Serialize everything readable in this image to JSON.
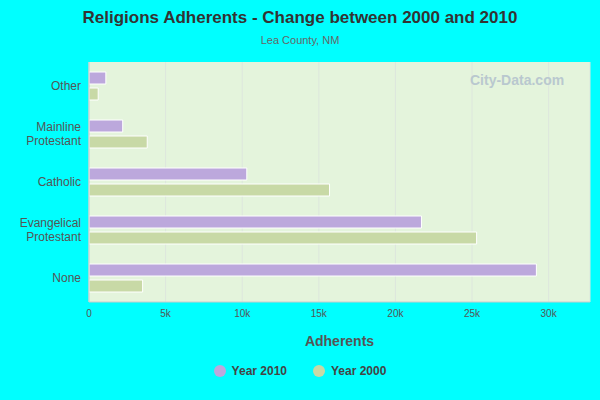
{
  "chart_data": {
    "type": "bar",
    "orientation": "horizontal",
    "title": "Religions Adherents - Change between 2000 and 2010",
    "subtitle": "Lea County, NM",
    "x_label": "Adherents",
    "annotations": [
      "City-Data.com"
    ],
    "categories": [
      "Other",
      "Mainline Protestant",
      "Catholic",
      "Evangelical Protestant",
      "None"
    ],
    "series": [
      {
        "name": "Year 2010",
        "color": "#bca8dc",
        "values": [
          1100,
          2200,
          10300,
          21700,
          29200
        ]
      },
      {
        "name": "Year 2000",
        "color": "#c8d9a6",
        "values": [
          600,
          3800,
          15700,
          25300,
          3500
        ]
      }
    ],
    "xlim": [
      0,
      32700
    ],
    "xticks": [
      0,
      {
        "value": 5000,
        "label": "5k"
      },
      {
        "value": 10000,
        "label": "10k"
      },
      {
        "value": 15000,
        "label": "15k"
      },
      {
        "value": 20000,
        "label": "20k"
      },
      {
        "value": 25000,
        "label": "25k"
      },
      {
        "value": 30000,
        "label": "30k"
      }
    ],
    "grid": true,
    "legend": "bottom"
  }
}
